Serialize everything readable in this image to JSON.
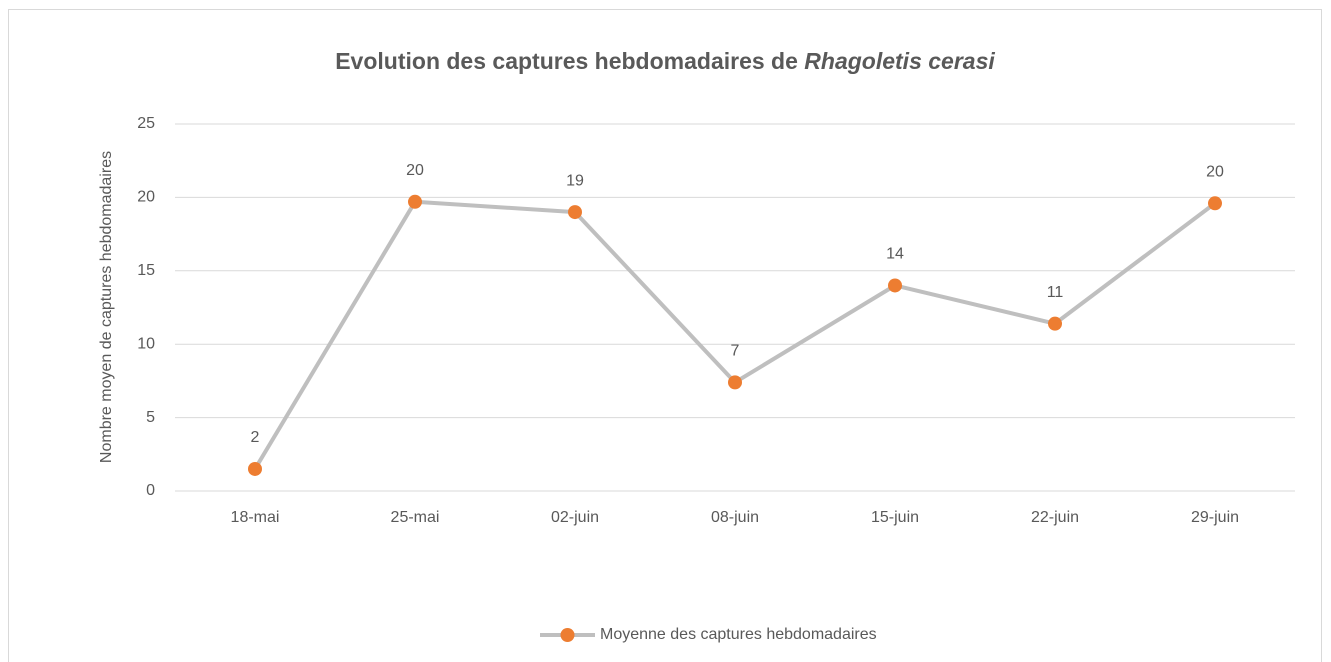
{
  "chart_data": {
    "type": "line",
    "title": "Evolution des captures hebdomadaires de",
    "title_species": "Rhagoletis cerasi",
    "y_label": "Nombre moyen de captures hebdomadaires",
    "categories": [
      "18-mai",
      "25-mai",
      "02-juin",
      "08-juin",
      "15-juin",
      "22-juin",
      "29-juin"
    ],
    "series": [
      {
        "name": "Moyenne des captures hebdomadaires",
        "color": "#bfbfbf",
        "marker_color": "#ed7d31",
        "values": [
          1.5,
          19.7,
          19.0,
          7.4,
          14.0,
          11.4,
          19.6
        ],
        "value_labels": [
          "2",
          "20",
          "19",
          "7",
          "14",
          "11",
          "20"
        ]
      }
    ],
    "ylim": [
      0,
      25
    ],
    "yticks": [
      0,
      5,
      10,
      15,
      20,
      25
    ],
    "grid": true,
    "legend": "bottom"
  }
}
